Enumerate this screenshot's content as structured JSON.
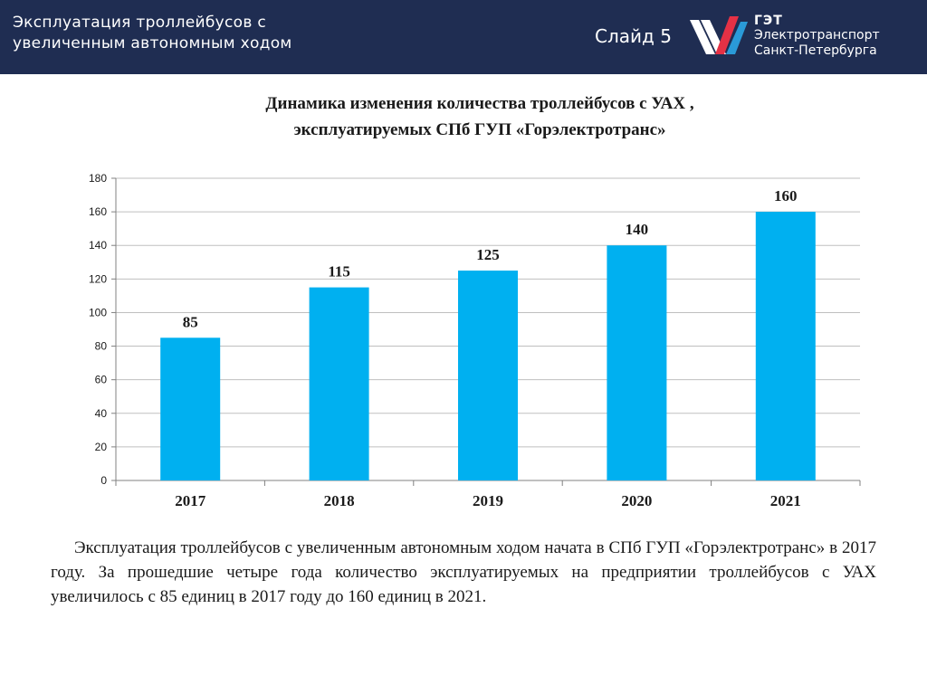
{
  "header": {
    "title_line1": "Эксплуатация троллейбусов с",
    "title_line2": "увеличенным автономным ходом",
    "slide": "Слайд 5",
    "logo_abbr": "ГЭТ",
    "logo_line1": "Электротранспорт",
    "logo_line2": "Санкт-Петербурга",
    "colors": {
      "bar": "#1f2d52",
      "logo_red": "#e53145",
      "logo_blue": "#2a9ad8",
      "logo_white": "#ffffff"
    }
  },
  "chart_data": {
    "type": "bar",
    "title_line1": "Динамика изменения количества троллейбусов с УАХ ,",
    "title_line2": "эксплуатируемых СПб ГУП «Горэлектротранс»",
    "categories": [
      "2017",
      "2018",
      "2019",
      "2020",
      "2021"
    ],
    "values": [
      85,
      115,
      125,
      140,
      160
    ],
    "ylim": [
      0,
      180
    ],
    "yticks": [
      0,
      20,
      40,
      60,
      80,
      100,
      120,
      140,
      160,
      180
    ],
    "grid": true,
    "legend": "none",
    "bar_color": "#00b0f0",
    "data_labels": true
  },
  "caption": "Эксплуатация троллейбусов с увеличенным автономным ходом начата в СПб ГУП «Горэлектротранс» в 2017 году. За прошедшие четыре года количество эксплуатируемых на предприятии троллейбусов с УАХ увеличилось с 85 единиц в 2017 году до 160 единиц в 2021."
}
